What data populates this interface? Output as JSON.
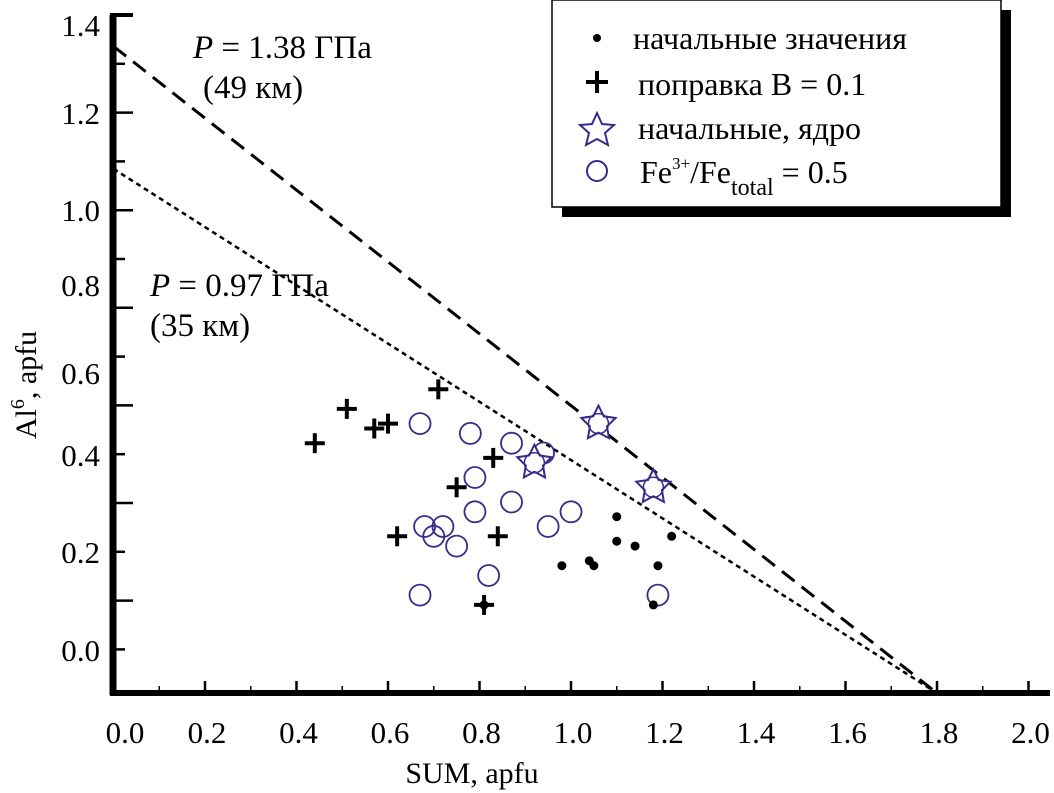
{
  "chart_data": {
    "type": "scatter",
    "title": "",
    "xlabel": "SUM, apfu",
    "ylabel": {
      "base": "Al",
      "sup": "6",
      "rest": ", apfu"
    },
    "xlim": [
      0.0,
      2.05
    ],
    "ylim": [
      -0.09,
      1.4
    ],
    "grid": false,
    "x_ticks": [
      "0.0",
      "0.2",
      "0.4",
      "0.6",
      "0.8",
      "1.0",
      "1.2",
      "1.4",
      "1.6",
      "1.8",
      "2.0"
    ],
    "y_ticks": [
      "1.4",
      "1.2",
      "1.0",
      "0.8",
      "0.6",
      "0.4",
      "0.2",
      "0.0"
    ],
    "legend_position": "top-right",
    "legend": [
      {
        "marker": "dot",
        "label": "начальные значения"
      },
      {
        "marker": "cross",
        "label": "поправка B = 0.1"
      },
      {
        "marker": "star",
        "label": "начальные, ядро"
      },
      {
        "marker": "circle",
        "label_main": "Fe",
        "label_sup": "3+",
        "label_mid": "/Fe",
        "label_sub": "total",
        "label_end": " = 0.5"
      }
    ],
    "colors": {
      "dot": "#000000",
      "cross": "#000000",
      "star": "#3a2a8a",
      "circle": "#3a2a8a",
      "lines": "#000000"
    },
    "series": [
      {
        "name": "начальные значения",
        "marker": "dot",
        "points": [
          [
            1.1,
            0.27
          ],
          [
            1.1,
            0.22
          ],
          [
            1.14,
            0.21
          ],
          [
            1.22,
            0.23
          ],
          [
            0.98,
            0.17
          ],
          [
            1.04,
            0.18
          ],
          [
            1.05,
            0.17
          ],
          [
            1.19,
            0.17
          ],
          [
            1.18,
            0.09
          ],
          [
            0.81,
            0.09
          ]
        ]
      },
      {
        "name": "поправка B = 0.1",
        "marker": "cross",
        "points": [
          [
            0.44,
            0.42
          ],
          [
            0.51,
            0.49
          ],
          [
            0.57,
            0.45
          ],
          [
            0.6,
            0.46
          ],
          [
            0.71,
            0.53
          ],
          [
            0.83,
            0.39
          ],
          [
            0.75,
            0.33
          ],
          [
            0.62,
            0.23
          ],
          [
            0.84,
            0.23
          ],
          [
            0.81,
            0.09
          ]
        ]
      },
      {
        "name": "начальные, ядро",
        "marker": "star",
        "points": [
          [
            0.92,
            0.38
          ],
          [
            1.06,
            0.46
          ],
          [
            1.18,
            0.33
          ]
        ]
      },
      {
        "name": "Fe3+/Fetotal = 0.5",
        "marker": "circle",
        "points": [
          [
            0.67,
            0.46
          ],
          [
            0.78,
            0.44
          ],
          [
            0.87,
            0.42
          ],
          [
            0.94,
            0.4
          ],
          [
            0.79,
            0.35
          ],
          [
            0.87,
            0.3
          ],
          [
            0.79,
            0.28
          ],
          [
            0.68,
            0.25
          ],
          [
            0.7,
            0.23
          ],
          [
            0.72,
            0.25
          ],
          [
            0.75,
            0.21
          ],
          [
            0.95,
            0.25
          ],
          [
            1.0,
            0.28
          ],
          [
            0.82,
            0.15
          ],
          [
            0.67,
            0.11
          ],
          [
            1.19,
            0.11
          ]
        ]
      }
    ],
    "lines": [
      {
        "name": "P = 1.38 GPa",
        "style": "dashed",
        "from": [
          0.0,
          1.23
        ],
        "to": [
          1.8,
          -0.09
        ]
      },
      {
        "name": "P = 0.97 GPa",
        "style": "dotted",
        "from": [
          0.0,
          0.98
        ],
        "to": [
          1.8,
          -0.09
        ]
      }
    ],
    "annotations": [
      {
        "italic": "P",
        "text": " = 1.38 ГПа",
        "line2": "(49 км)"
      },
      {
        "italic": "P",
        "text": " = 0.97 ГПа",
        "line2": "(35 км)"
      }
    ]
  }
}
